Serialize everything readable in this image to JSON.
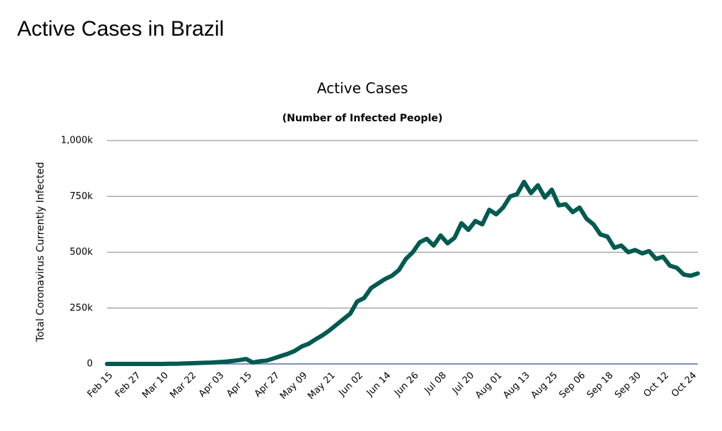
{
  "header": {
    "title": "Active Cases in Brazil"
  },
  "chart_data": {
    "type": "line",
    "title": "Active Cases",
    "subtitle": "(Number of Infected People)",
    "y_label": "Total Coronavirus Currently Infected",
    "categories": [
      "Feb 15",
      null,
      null,
      null,
      "Feb 27",
      null,
      null,
      null,
      "Mar 10",
      null,
      null,
      null,
      "Mar 22",
      null,
      null,
      null,
      "Apr 03",
      null,
      null,
      null,
      "Apr 15",
      null,
      null,
      null,
      "Apr 27",
      null,
      null,
      null,
      "May 09",
      null,
      null,
      null,
      "May 21",
      null,
      null,
      null,
      "Jun 02",
      null,
      null,
      null,
      "Jun 14",
      null,
      null,
      null,
      "Jun 26",
      null,
      null,
      null,
      "Jul 08",
      null,
      null,
      null,
      "Jul 20",
      null,
      null,
      null,
      "Aug 01",
      null,
      null,
      null,
      "Aug 13",
      null,
      null,
      null,
      "Aug 25",
      null,
      null,
      null,
      "Sep 06",
      null,
      null,
      null,
      "Sep 18",
      null,
      null,
      null,
      "Sep 30",
      null,
      null,
      null,
      "Oct 12",
      null,
      null,
      null,
      "Oct 24",
      null
    ],
    "series": [
      {
        "name": "Active Cases",
        "color": "#005a50",
        "values": [
          0,
          0,
          0,
          0,
          0,
          0,
          0,
          0,
          0,
          1000,
          1000,
          2000,
          3000,
          4000,
          5000,
          6000,
          8000,
          10000,
          13000,
          17000,
          22000,
          6000,
          12000,
          15000,
          25000,
          35000,
          45000,
          58000,
          78000,
          90000,
          110000,
          128000,
          150000,
          175000,
          200000,
          225000,
          280000,
          295000,
          340000,
          360000,
          380000,
          395000,
          420000,
          470000,
          500000,
          545000,
          560000,
          530000,
          575000,
          540000,
          565000,
          630000,
          600000,
          640000,
          625000,
          690000,
          670000,
          700000,
          750000,
          760000,
          815000,
          765000,
          800000,
          745000,
          780000,
          710000,
          715000,
          680000,
          700000,
          650000,
          625000,
          580000,
          570000,
          520000,
          530000,
          500000,
          510000,
          495000,
          505000,
          470000,
          480000,
          440000,
          430000,
          400000,
          395000,
          405000
        ]
      }
    ],
    "ylim": [
      0,
      1000000
    ],
    "yticks": [
      0,
      {
        "value": 250000,
        "label": "250k"
      },
      {
        "value": 500000,
        "label": "500k"
      },
      {
        "value": 750000,
        "label": "750k"
      },
      {
        "value": 1000000,
        "label": "1,000k"
      }
    ],
    "grid": true
  }
}
